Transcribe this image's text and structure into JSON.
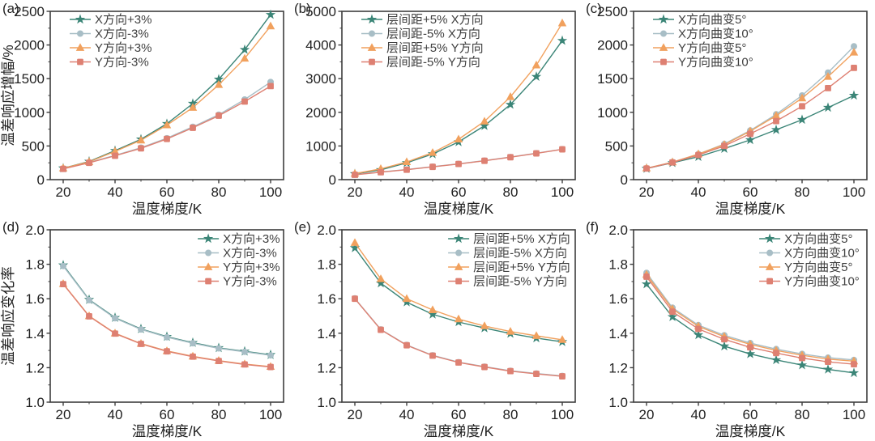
{
  "figure": {
    "bg": "#ffffff",
    "axis_color": "#3d3d3d",
    "tick_text_color": "#1f1f1f",
    "legend_text_color": "#3f3f3f"
  },
  "chart_data": {
    "type": "line",
    "x": [
      20,
      30,
      40,
      50,
      60,
      70,
      80,
      90,
      100
    ],
    "xlabel": "温度梯度/K",
    "xticks": [
      20,
      40,
      60,
      80,
      100
    ],
    "xminor": [
      30,
      50,
      70,
      90
    ],
    "xlim": [
      15,
      105
    ],
    "legend_marker_colors": {
      "teal": "#3B8577",
      "gray": "#A8BEC6",
      "orange": "#F1A15E",
      "salmon": "#DE8072"
    },
    "panels": [
      {
        "id": "a",
        "label": "(a)",
        "row": 0,
        "ylabel": "温差响应增幅/%",
        "ylim": [
          0,
          2500
        ],
        "ytick_vals": [
          0,
          500,
          1000,
          1500,
          2000,
          2500
        ],
        "ytick_labels": [
          "0",
          "500",
          "1000",
          "1500",
          "2000",
          "2500"
        ],
        "legend_pos": "top-left",
        "series": [
          {
            "name": "X方向+3%",
            "marker": "star",
            "color": "#3B8577",
            "values": [
              170,
              270,
              430,
              600,
              830,
              1130,
              1490,
              1930,
              2450
            ]
          },
          {
            "name": "X方向-3%",
            "marker": "circle",
            "color": "#A8BEC6",
            "values": [
              165,
              255,
              360,
              475,
              615,
              785,
              965,
              1190,
              1450
            ]
          },
          {
            "name": "Y方向+3%",
            "marker": "triangle",
            "color": "#F1A15E",
            "values": [
              170,
              265,
              420,
              585,
              810,
              1070,
              1410,
              1800,
              2280
            ]
          },
          {
            "name": "Y方向-3%",
            "marker": "square",
            "color": "#DE8072",
            "values": [
              160,
              250,
              355,
              465,
              605,
              770,
              950,
              1160,
              1390
            ]
          }
        ]
      },
      {
        "id": "b",
        "label": "(b)",
        "row": 0,
        "ylabel": "",
        "ylim": [
          0,
          5000
        ],
        "ytick_vals": [
          0,
          1000,
          2000,
          3000,
          4000,
          5000
        ],
        "ytick_labels": [
          "0",
          "1000",
          "2000",
          "3000",
          "4000",
          "5000"
        ],
        "legend_pos": "top-left",
        "series": [
          {
            "name": "层间距+5% X方向",
            "marker": "star",
            "color": "#3B8577",
            "values": [
              170,
              290,
              500,
              760,
              1120,
              1600,
              2230,
              3060,
              4130
            ]
          },
          {
            "name": "层间距-5% X方向",
            "marker": "circle",
            "color": "#A8BEC6",
            "values": [
              150,
              225,
              300,
              385,
              470,
              565,
              670,
              785,
              905
            ]
          },
          {
            "name": "层间距+5% Y方向",
            "marker": "triangle",
            "color": "#F1A15E",
            "values": [
              180,
              320,
              525,
              800,
              1200,
              1730,
              2460,
              3400,
              4650
            ]
          },
          {
            "name": "层间距-5% Y方向",
            "marker": "square",
            "color": "#DE8072",
            "values": [
              145,
              220,
              295,
              380,
              465,
              560,
              665,
              780,
              900
            ]
          }
        ]
      },
      {
        "id": "c",
        "label": "(c)",
        "row": 0,
        "ylabel": "",
        "ylim": [
          0,
          2500
        ],
        "ytick_vals": [
          0,
          500,
          1000,
          1500,
          2000,
          2500
        ],
        "ytick_labels": [
          "0",
          "500",
          "1000",
          "1500",
          "2000",
          "2500"
        ],
        "legend_pos": "top-left",
        "series": [
          {
            "name": "X方向曲变5°",
            "marker": "star",
            "color": "#3B8577",
            "values": [
              165,
              250,
              340,
              460,
              590,
              740,
              890,
              1070,
              1250
            ]
          },
          {
            "name": "X方向曲变10°",
            "marker": "circle",
            "color": "#A8BEC6",
            "values": [
              170,
              260,
              380,
              530,
              730,
              970,
              1250,
              1590,
              1980
            ]
          },
          {
            "name": "Y方向曲变5°",
            "marker": "triangle",
            "color": "#F1A15E",
            "values": [
              170,
              260,
              380,
              520,
              720,
              950,
              1210,
              1530,
              1890
            ]
          },
          {
            "name": "Y方向曲变10°",
            "marker": "square",
            "color": "#DE8072",
            "values": [
              165,
              255,
              365,
              500,
              680,
              870,
              1090,
              1360,
              1660
            ]
          }
        ]
      },
      {
        "id": "d",
        "label": "(d)",
        "row": 1,
        "ylabel": "温差响应变化率",
        "ylim": [
          1.0,
          2.0
        ],
        "ytick_vals": [
          1.0,
          1.2,
          1.4,
          1.6,
          1.8,
          2.0
        ],
        "ytick_labels": [
          "1.0",
          "1.2",
          "1.4",
          "1.6",
          "1.8",
          "2.0"
        ],
        "legend_pos": "top-right",
        "series": [
          {
            "name": "X方向+3%",
            "marker": "star",
            "color": "#3B8577",
            "values": [
              1.795,
              1.595,
              1.49,
              1.425,
              1.38,
              1.345,
              1.315,
              1.295,
              1.275
            ]
          },
          {
            "name": "X方向-3%",
            "marker": "circle",
            "color": "#A8BEC6",
            "values": [
              1.79,
              1.592,
              1.487,
              1.422,
              1.377,
              1.342,
              1.312,
              1.292,
              1.272
            ]
          },
          {
            "name": "Y方向+3%",
            "marker": "triangle",
            "color": "#F1A15E",
            "values": [
              1.687,
              1.5,
              1.4,
              1.34,
              1.297,
              1.266,
              1.241,
              1.221,
              1.206
            ]
          },
          {
            "name": "Y方向-3%",
            "marker": "square",
            "color": "#DE8072",
            "values": [
              1.685,
              1.498,
              1.398,
              1.338,
              1.295,
              1.264,
              1.239,
              1.219,
              1.204
            ]
          }
        ]
      },
      {
        "id": "e",
        "label": "(e)",
        "row": 1,
        "ylabel": "",
        "ylim": [
          1.0,
          2.0
        ],
        "ytick_vals": [
          1.0,
          1.2,
          1.4,
          1.6,
          1.8,
          2.0
        ],
        "ytick_labels": [
          "1.0",
          "1.2",
          "1.4",
          "1.6",
          "1.8",
          "2.0"
        ],
        "legend_pos": "top-right",
        "series": [
          {
            "name": "层间距+5% X方向",
            "marker": "star",
            "color": "#3B8577",
            "values": [
              1.895,
              1.69,
              1.58,
              1.51,
              1.465,
              1.43,
              1.398,
              1.372,
              1.35
            ]
          },
          {
            "name": "层间距-5% X方向",
            "marker": "circle",
            "color": "#A8BEC6",
            "values": [
              1.602,
              1.422,
              1.332,
              1.272,
              1.232,
              1.206,
              1.182,
              1.166,
              1.152
            ]
          },
          {
            "name": "层间距+5% Y方向",
            "marker": "triangle",
            "color": "#F1A15E",
            "values": [
              1.925,
              1.715,
              1.6,
              1.535,
              1.482,
              1.442,
              1.41,
              1.385,
              1.362
            ]
          },
          {
            "name": "层间距-5% Y方向",
            "marker": "square",
            "color": "#DE8072",
            "values": [
              1.6,
              1.42,
              1.33,
              1.27,
              1.23,
              1.204,
              1.18,
              1.164,
              1.15
            ]
          }
        ]
      },
      {
        "id": "f",
        "label": "(f)",
        "row": 1,
        "ylabel": "",
        "ylim": [
          1.0,
          2.0
        ],
        "ytick_vals": [
          1.0,
          1.2,
          1.4,
          1.6,
          1.8,
          2.0
        ],
        "ytick_labels": [
          "1.0",
          "1.2",
          "1.4",
          "1.6",
          "1.8",
          "2.0"
        ],
        "legend_pos": "top-right",
        "series": [
          {
            "name": "X方向曲变5°",
            "marker": "star",
            "color": "#3B8577",
            "values": [
              1.685,
              1.495,
              1.39,
              1.325,
              1.28,
              1.245,
              1.215,
              1.19,
              1.17
            ]
          },
          {
            "name": "X方向曲变10°",
            "marker": "circle",
            "color": "#A8BEC6",
            "values": [
              1.75,
              1.548,
              1.447,
              1.388,
              1.343,
              1.308,
              1.28,
              1.258,
              1.245
            ]
          },
          {
            "name": "Y方向曲变5°",
            "marker": "triangle",
            "color": "#F1A15E",
            "values": [
              1.74,
              1.54,
              1.44,
              1.38,
              1.335,
              1.3,
              1.272,
              1.25,
              1.238
            ]
          },
          {
            "name": "Y方向曲变10°",
            "marker": "square",
            "color": "#DE8072",
            "values": [
              1.728,
              1.525,
              1.425,
              1.365,
              1.318,
              1.285,
              1.256,
              1.234,
              1.22
            ]
          }
        ]
      }
    ]
  }
}
